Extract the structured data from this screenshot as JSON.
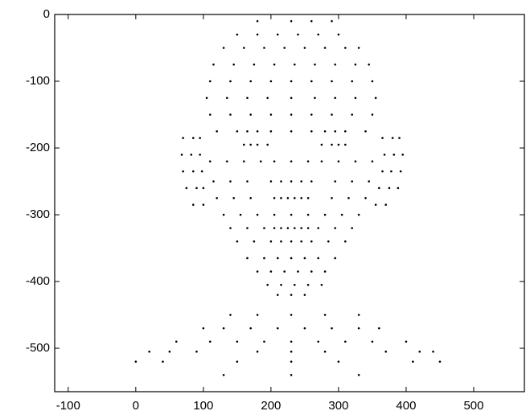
{
  "chart_data": {
    "type": "scatter",
    "color": "#000000",
    "xlim": [
      -120,
      575
    ],
    "ylim": [
      -565,
      0
    ],
    "xticks": [
      -100,
      0,
      100,
      200,
      300,
      400,
      500
    ],
    "yticks": [
      0,
      -100,
      -200,
      -300,
      -400,
      -500
    ],
    "x": [
      180,
      230,
      260,
      290,
      150,
      180,
      210,
      240,
      270,
      300,
      130,
      160,
      190,
      220,
      250,
      280,
      310,
      330,
      115,
      145,
      175,
      205,
      235,
      265,
      295,
      325,
      345,
      110,
      140,
      170,
      200,
      230,
      260,
      290,
      320,
      350,
      105,
      135,
      165,
      195,
      230,
      265,
      295,
      325,
      355,
      110,
      140,
      170,
      200,
      230,
      260,
      290,
      320,
      350,
      120,
      150,
      165,
      180,
      200,
      230,
      260,
      280,
      295,
      310,
      340,
      160,
      170,
      180,
      195,
      275,
      290,
      300,
      310,
      70,
      85,
      95,
      365,
      380,
      390,
      68,
      82,
      95,
      368,
      382,
      395,
      70,
      85,
      98,
      365,
      378,
      392,
      75,
      90,
      100,
      360,
      375,
      388,
      85,
      100,
      355,
      370,
      110,
      135,
      160,
      185,
      205,
      230,
      255,
      275,
      300,
      325,
      350,
      115,
      140,
      165,
      200,
      215,
      230,
      245,
      260,
      295,
      320,
      345,
      120,
      145,
      170,
      205,
      215,
      225,
      235,
      245,
      255,
      290,
      315,
      340,
      130,
      155,
      180,
      205,
      230,
      255,
      280,
      305,
      330,
      140,
      165,
      190,
      205,
      215,
      225,
      235,
      245,
      255,
      270,
      295,
      320,
      150,
      175,
      200,
      215,
      230,
      245,
      260,
      285,
      310,
      165,
      190,
      210,
      230,
      250,
      270,
      295,
      180,
      200,
      220,
      240,
      260,
      280,
      195,
      215,
      235,
      255,
      275,
      210,
      230,
      250,
      140,
      180,
      230,
      280,
      330,
      100,
      130,
      170,
      210,
      250,
      290,
      330,
      360,
      60,
      110,
      150,
      190,
      230,
      270,
      310,
      350,
      400,
      20,
      50,
      90,
      180,
      230,
      280,
      370,
      420,
      440,
      0,
      40,
      150,
      230,
      300,
      410,
      450,
      130,
      230,
      330
    ],
    "values": [
      -10,
      -10,
      -10,
      -10,
      -30,
      -30,
      -30,
      -30,
      -30,
      -30,
      -50,
      -50,
      -50,
      -50,
      -50,
      -50,
      -50,
      -50,
      -75,
      -75,
      -75,
      -75,
      -75,
      -75,
      -75,
      -75,
      -75,
      -100,
      -100,
      -100,
      -100,
      -100,
      -100,
      -100,
      -100,
      -100,
      -125,
      -125,
      -125,
      -125,
      -125,
      -125,
      -125,
      -125,
      -125,
      -150,
      -150,
      -150,
      -150,
      -150,
      -150,
      -150,
      -150,
      -150,
      -175,
      -175,
      -175,
      -175,
      -175,
      -175,
      -175,
      -175,
      -175,
      -175,
      -175,
      -195,
      -195,
      -195,
      -195,
      -195,
      -195,
      -195,
      -195,
      -185,
      -185,
      -185,
      -185,
      -185,
      -185,
      -210,
      -210,
      -210,
      -210,
      -210,
      -210,
      -235,
      -235,
      -235,
      -235,
      -235,
      -235,
      -260,
      -260,
      -260,
      -260,
      -260,
      -260,
      -285,
      -285,
      -285,
      -285,
      -220,
      -220,
      -220,
      -220,
      -220,
      -220,
      -220,
      -220,
      -220,
      -220,
      -220,
      -250,
      -250,
      -250,
      -250,
      -250,
      -250,
      -250,
      -250,
      -250,
      -250,
      -250,
      -275,
      -275,
      -275,
      -275,
      -275,
      -275,
      -275,
      -275,
      -275,
      -275,
      -275,
      -275,
      -300,
      -300,
      -300,
      -300,
      -300,
      -300,
      -300,
      -300,
      -300,
      -320,
      -320,
      -320,
      -320,
      -320,
      -320,
      -320,
      -320,
      -320,
      -320,
      -320,
      -320,
      -340,
      -340,
      -340,
      -340,
      -340,
      -340,
      -340,
      -340,
      -340,
      -365,
      -365,
      -365,
      -365,
      -365,
      -365,
      -365,
      -385,
      -385,
      -385,
      -385,
      -385,
      -385,
      -405,
      -405,
      -405,
      -405,
      -405,
      -420,
      -420,
      -420,
      -450,
      -450,
      -450,
      -450,
      -450,
      -470,
      -470,
      -470,
      -470,
      -470,
      -470,
      -470,
      -470,
      -490,
      -490,
      -490,
      -490,
      -490,
      -490,
      -490,
      -490,
      -490,
      -505,
      -505,
      -505,
      -505,
      -505,
      -505,
      -505,
      -505,
      -505,
      -520,
      -520,
      -520,
      -520,
      -520,
      -520,
      -520,
      -540,
      -540,
      -540
    ]
  }
}
